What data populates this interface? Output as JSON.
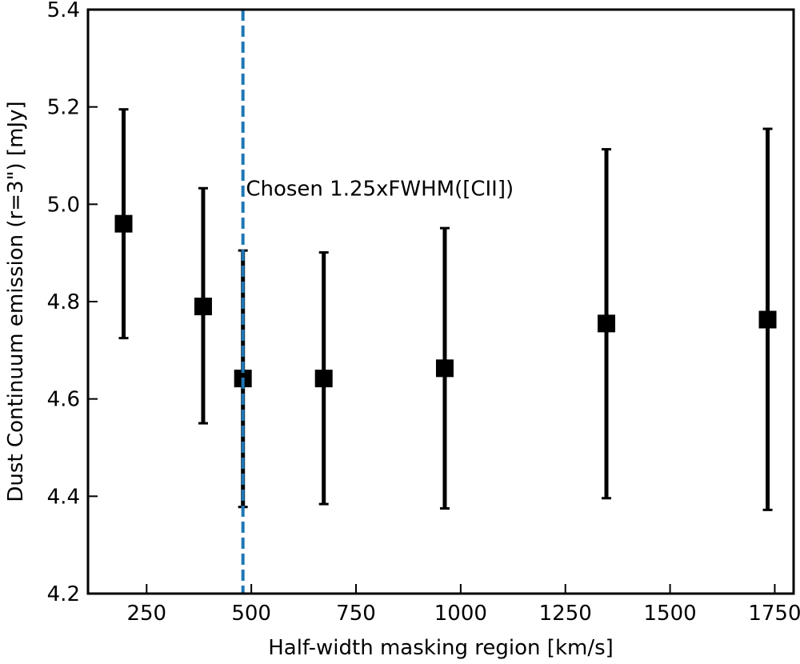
{
  "chart_data": {
    "type": "scatter",
    "title": "",
    "xlabel": "Half-width masking region [km/s]",
    "ylabel": "Dust Continuum emission (r=3\") [mJy]",
    "xlim": [
      110,
      1795
    ],
    "ylim": [
      4.2,
      5.4
    ],
    "xticks": [
      250,
      500,
      750,
      1000,
      1250,
      1500,
      1750
    ],
    "yticks": [
      4.2,
      4.4,
      4.6,
      4.8,
      5.0,
      5.2,
      5.4
    ],
    "xtick_labels": [
      "250",
      "500",
      "750",
      "1000",
      "1250",
      "1500",
      "1750"
    ],
    "ytick_labels": [
      "4.2",
      "4.4",
      "4.6",
      "4.8",
      "5.0",
      "5.2",
      "5.4"
    ],
    "series": [
      {
        "name": "Dust continuum",
        "marker": "square",
        "color": "#000000",
        "points": [
          {
            "x": 195,
            "y": 4.96,
            "yerr_low": 4.725,
            "yerr_high": 5.195
          },
          {
            "x": 385,
            "y": 4.79,
            "yerr_low": 4.55,
            "yerr_high": 5.033
          },
          {
            "x": 480,
            "y": 4.642,
            "yerr_low": 4.378,
            "yerr_high": 4.905
          },
          {
            "x": 673,
            "y": 4.642,
            "yerr_low": 4.384,
            "yerr_high": 4.901
          },
          {
            "x": 962,
            "y": 4.663,
            "yerr_low": 4.375,
            "yerr_high": 4.951
          },
          {
            "x": 1348,
            "y": 4.755,
            "yerr_low": 4.396,
            "yerr_high": 5.113
          },
          {
            "x": 1733,
            "y": 4.763,
            "yerr_low": 4.372,
            "yerr_high": 5.155
          }
        ]
      }
    ],
    "vline": {
      "x": 480,
      "color": "#1f77b4",
      "style": "dashed"
    },
    "annotation": {
      "text": "Chosen 1.25xFWHM([CII])",
      "x": 487,
      "y": 5.01
    }
  }
}
